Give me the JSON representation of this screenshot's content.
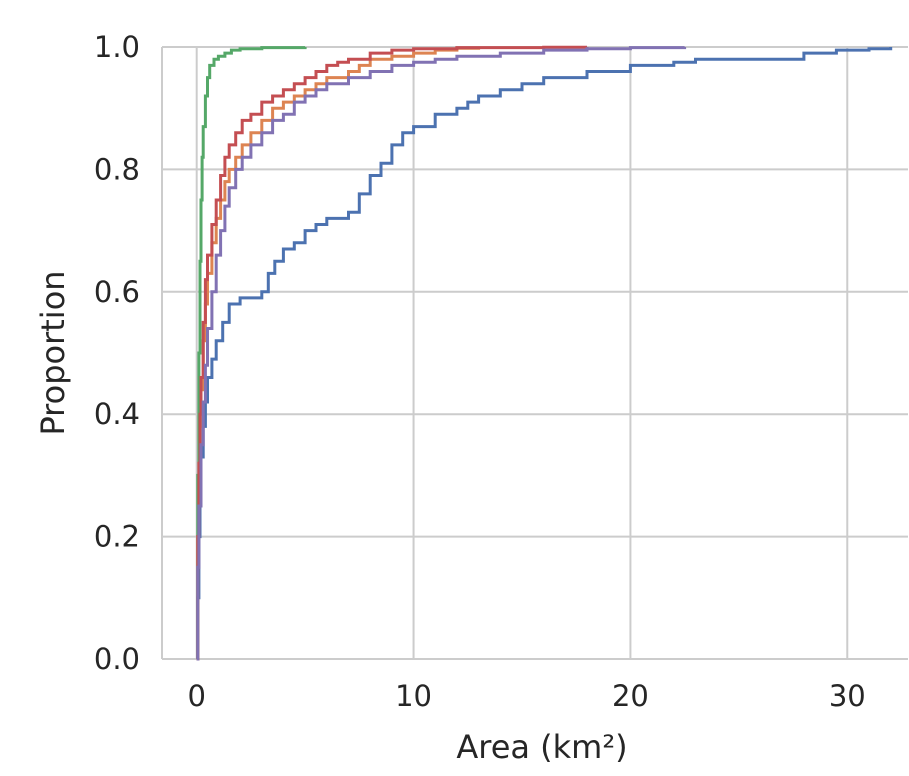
{
  "chart_data": {
    "type": "line",
    "title": "",
    "xlabel": "Area (km²)",
    "ylabel": "Proportion",
    "xlim": [
      -1.6,
      32.8
    ],
    "ylim": [
      0,
      1.0
    ],
    "xticks": [
      0,
      10,
      20,
      30
    ],
    "yticks": [
      0.0,
      0.2,
      0.4,
      0.6,
      0.8,
      1.0
    ],
    "xtick_labels": [
      "0",
      "10",
      "20",
      "30"
    ],
    "ytick_labels": [
      "0.0",
      "0.2",
      "0.4",
      "0.6",
      "0.8",
      "1.0"
    ],
    "grid": true,
    "step": true,
    "series": [
      {
        "color": "#4c72b0",
        "x": [
          0,
          0.05,
          0.1,
          0.15,
          0.2,
          0.3,
          0.4,
          0.5,
          0.7,
          0.9,
          1.2,
          1.5,
          2.0,
          2.5,
          3.0,
          3.3,
          3.6,
          4.0,
          4.5,
          5.0,
          5.5,
          6.0,
          6.5,
          7.0,
          7.5,
          8.0,
          8.5,
          9.0,
          9.5,
          10.0,
          10.5,
          11.0,
          12.0,
          12.5,
          13.0,
          14.0,
          15.0,
          16.0,
          17.0,
          18.0,
          19.0,
          20.0,
          21.0,
          22.0,
          23.0,
          25.0,
          28.0,
          29.5,
          31.0,
          32.0
        ],
        "y": [
          0,
          0.1,
          0.2,
          0.28,
          0.33,
          0.38,
          0.42,
          0.46,
          0.49,
          0.52,
          0.55,
          0.58,
          0.59,
          0.59,
          0.6,
          0.63,
          0.65,
          0.67,
          0.68,
          0.7,
          0.71,
          0.72,
          0.72,
          0.73,
          0.76,
          0.79,
          0.81,
          0.84,
          0.86,
          0.87,
          0.87,
          0.89,
          0.9,
          0.91,
          0.92,
          0.93,
          0.94,
          0.95,
          0.95,
          0.96,
          0.96,
          0.97,
          0.97,
          0.975,
          0.98,
          0.98,
          0.99,
          0.995,
          0.997,
          1.0
        ]
      },
      {
        "color": "#dd8452",
        "x": [
          0,
          0.05,
          0.1,
          0.15,
          0.2,
          0.3,
          0.4,
          0.5,
          0.7,
          0.9,
          1.1,
          1.3,
          1.5,
          1.8,
          2.1,
          2.5,
          3.0,
          3.5,
          4.0,
          4.5,
          5.0,
          5.5,
          6.0,
          7.0,
          7.5,
          8.0,
          9.0,
          10.0,
          11.0,
          12.0,
          13.0
        ],
        "y": [
          0,
          0.2,
          0.3,
          0.38,
          0.44,
          0.52,
          0.58,
          0.63,
          0.68,
          0.72,
          0.75,
          0.78,
          0.8,
          0.82,
          0.84,
          0.86,
          0.88,
          0.9,
          0.91,
          0.92,
          0.93,
          0.94,
          0.95,
          0.96,
          0.97,
          0.98,
          0.985,
          0.99,
          0.995,
          0.998,
          1.0
        ]
      },
      {
        "color": "#55a868",
        "x": [
          0,
          0.05,
          0.1,
          0.15,
          0.2,
          0.25,
          0.3,
          0.4,
          0.5,
          0.6,
          0.8,
          1.0,
          1.3,
          1.6,
          2.0,
          3.0,
          5.0
        ],
        "y": [
          0,
          0.3,
          0.5,
          0.65,
          0.75,
          0.82,
          0.87,
          0.92,
          0.95,
          0.97,
          0.98,
          0.985,
          0.99,
          0.995,
          0.997,
          0.999,
          1.0
        ]
      },
      {
        "color": "#c44e52",
        "x": [
          0,
          0.05,
          0.1,
          0.15,
          0.2,
          0.3,
          0.4,
          0.5,
          0.7,
          0.9,
          1.1,
          1.3,
          1.5,
          1.8,
          2.1,
          2.5,
          3.0,
          3.5,
          4.0,
          4.5,
          5.0,
          5.5,
          6.0,
          6.5,
          7.0,
          8.0,
          9.0,
          10.0,
          12.0,
          14.0,
          16.0,
          18.0
        ],
        "y": [
          0,
          0.2,
          0.32,
          0.4,
          0.46,
          0.55,
          0.62,
          0.66,
          0.71,
          0.75,
          0.79,
          0.82,
          0.84,
          0.86,
          0.88,
          0.89,
          0.91,
          0.92,
          0.93,
          0.94,
          0.95,
          0.96,
          0.97,
          0.975,
          0.98,
          0.99,
          0.995,
          0.997,
          0.999,
          0.999,
          0.9995,
          1.0
        ]
      },
      {
        "color": "#8172b3",
        "x": [
          0,
          0.05,
          0.1,
          0.2,
          0.3,
          0.4,
          0.5,
          0.7,
          0.9,
          1.1,
          1.3,
          1.5,
          1.8,
          2.1,
          2.5,
          3.0,
          3.5,
          4.0,
          4.5,
          5.0,
          5.5,
          6.0,
          7.0,
          8.0,
          9.0,
          10.0,
          11.0,
          12.0,
          14.0,
          16.0,
          18.0,
          20.0,
          22.5
        ],
        "y": [
          0,
          0.15,
          0.25,
          0.35,
          0.42,
          0.48,
          0.54,
          0.6,
          0.66,
          0.7,
          0.74,
          0.77,
          0.8,
          0.82,
          0.84,
          0.86,
          0.88,
          0.89,
          0.91,
          0.92,
          0.93,
          0.94,
          0.95,
          0.96,
          0.97,
          0.975,
          0.98,
          0.985,
          0.99,
          0.995,
          0.997,
          0.999,
          1.0
        ]
      }
    ]
  }
}
